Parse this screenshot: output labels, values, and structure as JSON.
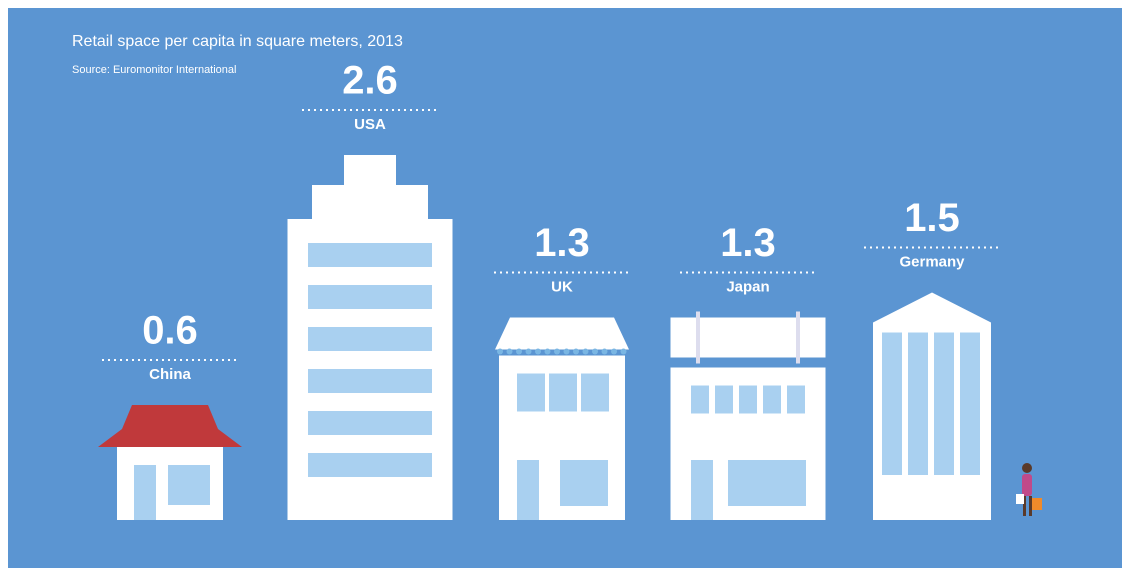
{
  "chart_data": {
    "type": "pictogram",
    "title": "Retail space per capita in square meters, 2013",
    "subtitle": "Source: Euromonitor International",
    "categories": [
      "China",
      "USA",
      "UK",
      "Japan",
      "Germany"
    ],
    "values": [
      0.6,
      2.6,
      1.3,
      1.3,
      1.5
    ]
  }
}
